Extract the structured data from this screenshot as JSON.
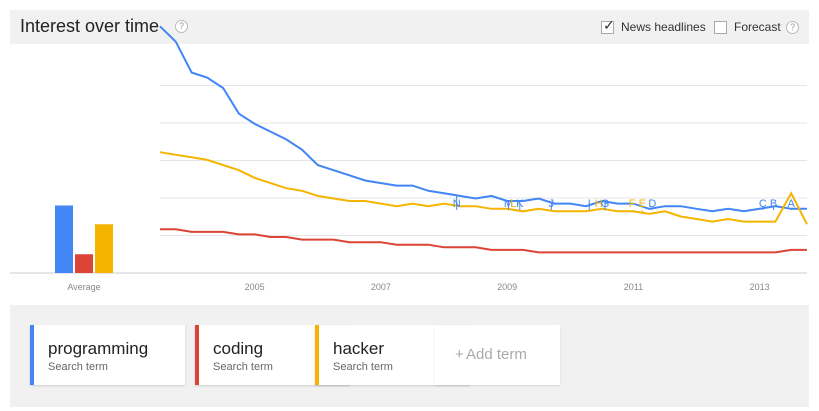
{
  "header": {
    "title": "Interest over time",
    "help_icon": "question-icon",
    "news_headlines": {
      "label": "News headlines",
      "checked": true
    },
    "forecast": {
      "label": "Forecast",
      "checked": false
    }
  },
  "colors": {
    "programming": "#4285f4",
    "coding": "#db4437",
    "hacker": "#f4b400",
    "grid": "#e5e5e5",
    "axis_text": "#888888"
  },
  "chart_data": [
    {
      "type": "bar",
      "categories": [
        "Average"
      ],
      "series": [
        {
          "name": "programming",
          "values": [
            36
          ]
        },
        {
          "name": "coding",
          "values": [
            10
          ]
        },
        {
          "name": "hacker",
          "values": [
            26
          ]
        }
      ],
      "ylim": [
        0,
        100
      ]
    },
    {
      "type": "line",
      "x_tick_labels": [
        "2005",
        "2007",
        "2009",
        "2011",
        "2013"
      ],
      "x": [
        2004.0,
        2004.25,
        2004.5,
        2004.75,
        2005.0,
        2005.25,
        2005.5,
        2005.75,
        2006.0,
        2006.25,
        2006.5,
        2006.75,
        2007.0,
        2007.25,
        2007.5,
        2007.75,
        2008.0,
        2008.25,
        2008.5,
        2008.75,
        2009.0,
        2009.25,
        2009.5,
        2009.75,
        2010.0,
        2010.25,
        2010.5,
        2010.75,
        2011.0,
        2011.25,
        2011.5,
        2011.75,
        2012.0,
        2012.25,
        2012.5,
        2012.75,
        2013.0,
        2013.25,
        2013.5,
        2013.75,
        2014.0,
        2014.25
      ],
      "xlim": [
        2004.0,
        2014.25
      ],
      "ylim": [
        0,
        100
      ],
      "series": [
        {
          "name": "programming",
          "values": [
            96,
            90,
            78,
            76,
            72,
            62,
            58,
            55,
            52,
            48,
            42,
            40,
            38,
            36,
            35,
            34,
            34,
            32,
            31,
            30,
            29,
            30,
            28,
            28,
            29,
            27,
            27,
            26,
            28,
            27,
            27,
            25,
            26,
            26,
            25,
            24,
            25,
            24,
            25,
            26,
            25,
            25
          ]
        },
        {
          "name": "coding",
          "values": [
            17,
            17,
            16,
            16,
            16,
            15,
            15,
            14,
            14,
            13,
            13,
            13,
            12,
            12,
            12,
            11,
            11,
            11,
            10,
            10,
            10,
            9,
            9,
            9,
            8,
            8,
            8,
            8,
            8,
            8,
            8,
            8,
            8,
            8,
            8,
            8,
            8,
            8,
            8,
            8,
            9,
            9
          ]
        },
        {
          "name": "hacker",
          "values": [
            47,
            46,
            45,
            44,
            42,
            40,
            37,
            35,
            33,
            32,
            30,
            29,
            28,
            28,
            27,
            26,
            27,
            26,
            27,
            26,
            26,
            25,
            25,
            24,
            25,
            24,
            24,
            24,
            25,
            24,
            24,
            23,
            24,
            22,
            21,
            20,
            21,
            20,
            20,
            20,
            31,
            19
          ]
        }
      ],
      "annotations": [
        {
          "label": "N",
          "x": 2008.7
        },
        {
          "label": "M",
          "x": 2009.52
        },
        {
          "label": "L",
          "x": 2009.6
        },
        {
          "label": "K",
          "x": 2009.7
        },
        {
          "label": "J",
          "x": 2010.2
        },
        {
          "label": "I",
          "x": 2010.8
        },
        {
          "label": "H",
          "x": 2010.95
        },
        {
          "label": "G",
          "x": 2011.05
        },
        {
          "label": "F",
          "x": 2011.48
        },
        {
          "label": "E",
          "x": 2011.64
        },
        {
          "label": "D",
          "x": 2011.8
        },
        {
          "label": "C",
          "x": 2013.55
        },
        {
          "label": "B",
          "x": 2013.72
        },
        {
          "label": "A",
          "x": 2014.0
        }
      ]
    }
  ],
  "terms": [
    {
      "term": "programming",
      "sub": "Search term"
    },
    {
      "term": "coding",
      "sub": "Search term"
    },
    {
      "term": "hacker",
      "sub": "Search term"
    }
  ],
  "add_term": {
    "plus": "+",
    "label": "Add term"
  }
}
